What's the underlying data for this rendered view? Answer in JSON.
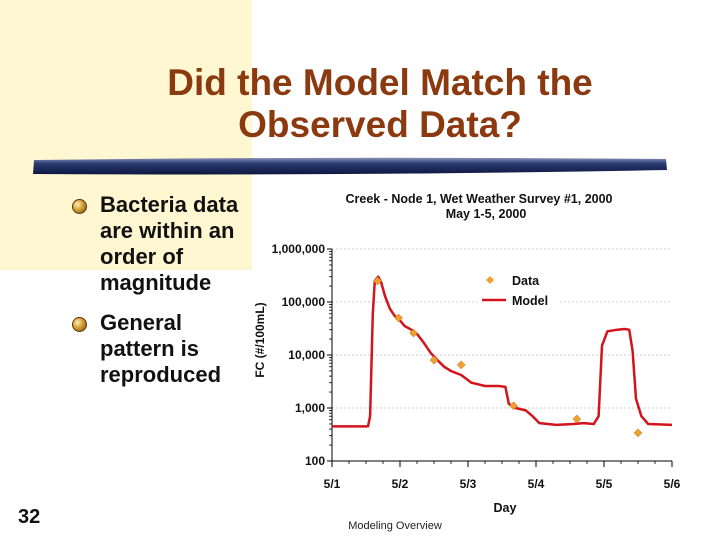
{
  "slide": {
    "title_line1": "Did the Model Match the",
    "title_line2": "Observed Data?",
    "bullets": [
      "Bacteria data are within an order of magnitude",
      "General pattern is reproduced"
    ],
    "number": "32",
    "footer": "Modeling Overview"
  },
  "colors": {
    "accent": "#8b3a0f",
    "background_block": "#fff7d2",
    "data_marker": "#f0a030",
    "model_line": "#d4141c"
  },
  "chart_data": {
    "type": "line",
    "title": "Creek - Node 1, Wet Weather Survey #1, 2000",
    "subtitle": "May 1-5, 2000",
    "xlabel": "Day",
    "ylabel": "FC (#/100mL)",
    "yscale": "log",
    "ylim": [
      100,
      1000000
    ],
    "yticks": [
      {
        "value": 100,
        "label": "100"
      },
      {
        "value": 1000,
        "label": "1,000"
      },
      {
        "value": 10000,
        "label": "10,000"
      },
      {
        "value": 100000,
        "label": "100,000"
      },
      {
        "value": 1000000,
        "label": "1,000,000"
      }
    ],
    "xlim": [
      1,
      6
    ],
    "xticks": [
      {
        "value": 1,
        "label": "5/1"
      },
      {
        "value": 2,
        "label": "5/2"
      },
      {
        "value": 3,
        "label": "5/3"
      },
      {
        "value": 4,
        "label": "5/4"
      },
      {
        "value": 5,
        "label": "5/5"
      },
      {
        "value": 6,
        "label": "5/6"
      }
    ],
    "legend": "top-right",
    "series": [
      {
        "name": "Data",
        "style": "marker",
        "points": [
          [
            1.67,
            250000
          ],
          [
            1.98,
            50000
          ],
          [
            2.2,
            26000
          ],
          [
            2.5,
            8000
          ],
          [
            2.9,
            6500
          ],
          [
            3.67,
            1100
          ],
          [
            4.6,
            620
          ],
          [
            5.5,
            340
          ]
        ]
      },
      {
        "name": "Model",
        "style": "line",
        "points": [
          [
            1.0,
            450
          ],
          [
            1.53,
            450
          ],
          [
            1.56,
            700
          ],
          [
            1.6,
            60000
          ],
          [
            1.63,
            250000
          ],
          [
            1.68,
            300000
          ],
          [
            1.72,
            240000
          ],
          [
            1.78,
            130000
          ],
          [
            1.85,
            75000
          ],
          [
            1.92,
            55000
          ],
          [
            2.0,
            45000
          ],
          [
            2.07,
            35000
          ],
          [
            2.15,
            31000
          ],
          [
            2.25,
            25000
          ],
          [
            2.35,
            17000
          ],
          [
            2.45,
            11000
          ],
          [
            2.55,
            8000
          ],
          [
            2.65,
            6000
          ],
          [
            2.75,
            5000
          ],
          [
            2.9,
            4200
          ],
          [
            3.05,
            3000
          ],
          [
            3.25,
            2600
          ],
          [
            3.45,
            2600
          ],
          [
            3.55,
            2500
          ],
          [
            3.6,
            1200
          ],
          [
            3.7,
            1000
          ],
          [
            3.85,
            900
          ],
          [
            3.95,
            700
          ],
          [
            4.05,
            520
          ],
          [
            4.3,
            480
          ],
          [
            4.55,
            500
          ],
          [
            4.7,
            520
          ],
          [
            4.85,
            500
          ],
          [
            4.92,
            700
          ],
          [
            4.97,
            15000
          ],
          [
            5.05,
            28000
          ],
          [
            5.2,
            30000
          ],
          [
            5.3,
            31000
          ],
          [
            5.37,
            30000
          ],
          [
            5.42,
            12000
          ],
          [
            5.47,
            1500
          ],
          [
            5.55,
            700
          ],
          [
            5.65,
            500
          ],
          [
            6.0,
            480
          ]
        ]
      }
    ]
  }
}
